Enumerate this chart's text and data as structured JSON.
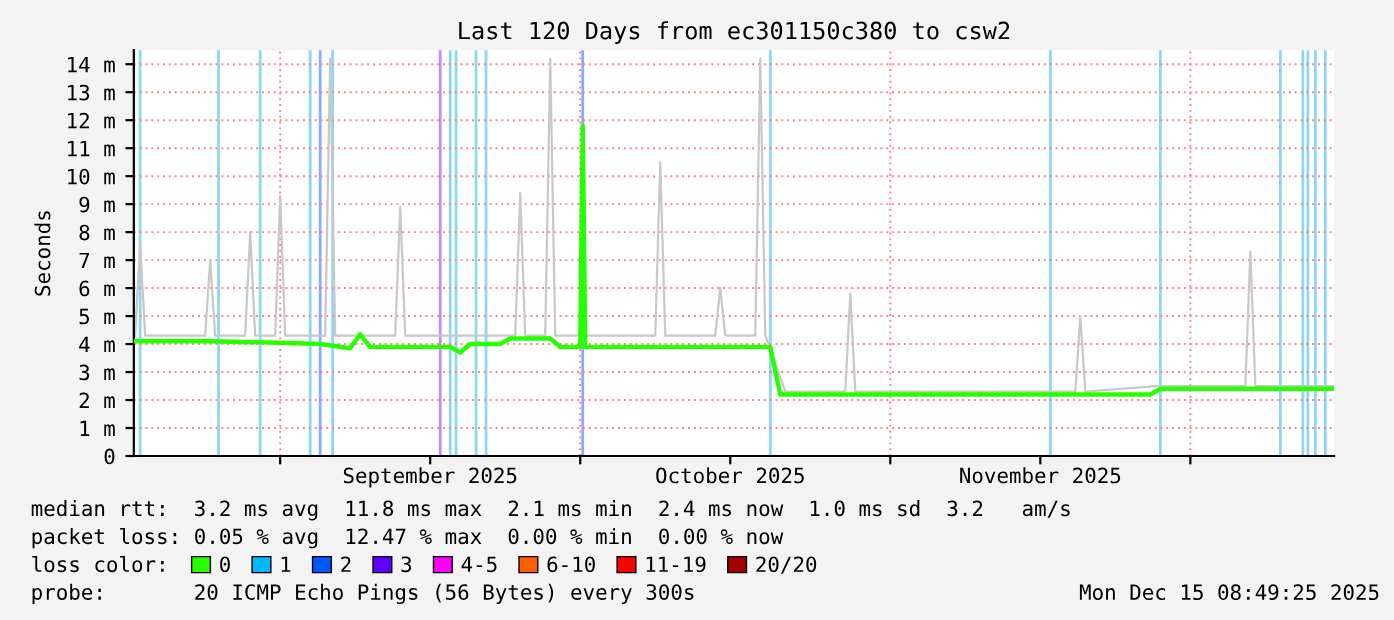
{
  "chart_data": {
    "type": "line",
    "title": "Last 120 Days from ec301150c380 to csw2",
    "ylabel": "Seconds",
    "xlim": [
      "2025-08-17T08:49",
      "2025-12-15T08:49"
    ],
    "xticks": [
      {
        "value": "2025-09-01",
        "label": null
      },
      {
        "value": "2025-09-16",
        "label": "September 2025"
      },
      {
        "value": "2025-10-01",
        "label": null
      },
      {
        "value": "2025-10-16",
        "label": "October 2025"
      },
      {
        "value": "2025-11-01",
        "label": null
      },
      {
        "value": "2025-11-16",
        "label": "November 2025"
      },
      {
        "value": "2025-12-01",
        "label": null
      }
    ],
    "ylim": [
      0,
      14.5
    ],
    "yticks": [
      0,
      {
        "value": 1,
        "label": "1 m"
      },
      {
        "value": 2,
        "label": "2 m"
      },
      {
        "value": 3,
        "label": "3 m"
      },
      {
        "value": 4,
        "label": "4 m"
      },
      {
        "value": 5,
        "label": "5 m"
      },
      {
        "value": 6,
        "label": "6 m"
      },
      {
        "value": 7,
        "label": "7 m"
      },
      {
        "value": 8,
        "label": "8 m"
      },
      {
        "value": 9,
        "label": "9 m"
      },
      {
        "value": 10,
        "label": "10 m"
      },
      {
        "value": 11,
        "label": "11 m"
      },
      {
        "value": 12,
        "label": "12 m"
      },
      {
        "value": 13,
        "label": "13 m"
      },
      {
        "value": 14,
        "label": "14 m"
      }
    ],
    "grid": true,
    "legend": "bottom",
    "legend_title": "loss color:",
    "series": [
      {
        "color": "#c8c8c8",
        "x": [
          "2025-08-17T12:00",
          "2025-08-18",
          "2025-08-18T12:00",
          "2025-08-24T12:00",
          "2025-08-25",
          "2025-08-25T12:00",
          "2025-08-28T12:00",
          "2025-08-29",
          "2025-08-29T12:00",
          "2025-08-31T12:00",
          "2025-09-01",
          "2025-09-01T12:00",
          "2025-09-05T12:00",
          "2025-09-06",
          "2025-09-06T12:00",
          "2025-09-12T12:00",
          "2025-09-13",
          "2025-09-13T12:00",
          "2025-09-24T12:00",
          "2025-09-25",
          "2025-09-25T12:00",
          "2025-09-27T12:00",
          "2025-09-28",
          "2025-09-28T12:00",
          "2025-10-08T12:00",
          "2025-10-09",
          "2025-10-09T12:00",
          "2025-10-14T12:00",
          "2025-10-15",
          "2025-10-15T12:00",
          "2025-10-18T12:00",
          "2025-10-19",
          "2025-10-19T12:00",
          "2025-10-21T12:00",
          "2025-10-27T12:00",
          "2025-10-28",
          "2025-10-28T12:00",
          "2025-11-19T12:00",
          "2025-11-20",
          "2025-11-20T12:00",
          "2025-11-27T12:00",
          "2025-12-06T12:00",
          "2025-12-07",
          "2025-12-07T12:00",
          "2025-12-15T08:00"
        ],
        "values": [
          4.3,
          7.6,
          4.3,
          4.3,
          7.0,
          4.3,
          4.3,
          8.0,
          4.3,
          4.3,
          9.3,
          4.3,
          4.3,
          14.2,
          4.3,
          4.3,
          8.9,
          4.3,
          4.3,
          9.4,
          4.3,
          4.3,
          14.2,
          4.3,
          4.3,
          10.5,
          4.3,
          4.3,
          6.0,
          4.3,
          4.3,
          14.2,
          4.3,
          2.3,
          2.3,
          5.8,
          2.3,
          2.3,
          5.0,
          2.3,
          2.5,
          2.5,
          7.3,
          2.5,
          2.5
        ]
      },
      {
        "name": "0",
        "color": "#26ff00",
        "x": [
          "2025-08-17T09:00",
          "2025-08-25",
          "2025-09-01",
          "2025-09-05",
          "2025-09-08",
          "2025-09-09",
          "2025-09-10",
          "2025-09-18",
          "2025-09-19",
          "2025-09-20",
          "2025-09-23",
          "2025-09-24",
          "2025-09-28",
          "2025-09-29",
          "2025-10-01",
          "2025-10-01T06:00",
          "2025-10-01T12:00",
          "2025-10-20",
          "2025-10-21",
          "2025-11-27",
          "2025-11-28",
          "2025-12-15T08:00"
        ],
        "values": [
          4.1,
          4.1,
          4.05,
          4.0,
          3.85,
          4.35,
          3.9,
          3.9,
          3.7,
          4.0,
          4.0,
          4.2,
          4.2,
          3.9,
          3.9,
          11.8,
          3.9,
          3.9,
          2.2,
          2.2,
          2.4,
          2.4
        ]
      },
      {
        "name": "1",
        "color": "#00b8ff"
      },
      {
        "name": "2",
        "color": "#0059ff"
      },
      {
        "name": "3",
        "color": "#5e00ff"
      },
      {
        "name": "4-5",
        "color": "#ff00ff"
      },
      {
        "name": "6-10",
        "color": "#ff5e00"
      },
      {
        "name": "11-19",
        "color": "#ff0000"
      },
      {
        "name": "20/20",
        "color": "#a10000"
      }
    ],
    "ref_lines": [
      {
        "axis": "x",
        "value": "2025-08-18",
        "color": "#8ad8f4"
      },
      {
        "axis": "x",
        "value": "2025-08-25T20:00",
        "color": "#8ad8f4"
      },
      {
        "axis": "x",
        "value": "2025-08-30",
        "color": "#8ad8f4"
      },
      {
        "axis": "x",
        "value": "2025-09-04",
        "color": "#8ad8f4"
      },
      {
        "axis": "x",
        "value": "2025-09-05",
        "color": "#8aaaff"
      },
      {
        "axis": "x",
        "value": "2025-09-06T06:00",
        "color": "#8ad8f4"
      },
      {
        "axis": "x",
        "value": "2025-09-17",
        "color": "#c08aff"
      },
      {
        "axis": "x",
        "value": "2025-09-18",
        "color": "#8ad8f4"
      },
      {
        "axis": "x",
        "value": "2025-09-18T14:00",
        "color": "#8ad8f4"
      },
      {
        "axis": "x",
        "value": "2025-09-20T14:00",
        "color": "#8ad8f4"
      },
      {
        "axis": "x",
        "value": "2025-09-21T14:00",
        "color": "#8ad8f4"
      },
      {
        "axis": "x",
        "value": "2025-10-01T06:00",
        "color": "#8aaaff"
      },
      {
        "axis": "x",
        "value": "2025-10-20",
        "color": "#8ad8f4"
      },
      {
        "axis": "x",
        "value": "2025-11-17",
        "color": "#8ad8f4"
      },
      {
        "axis": "x",
        "value": "2025-11-28",
        "color": "#8ad8f4"
      },
      {
        "axis": "x",
        "value": "2025-12-10",
        "color": "#8ad8f4"
      },
      {
        "axis": "x",
        "value": "2025-12-12T06:00",
        "color": "#8ad8f4"
      },
      {
        "axis": "x",
        "value": "2025-12-12T18:00",
        "color": "#8ad8f4"
      },
      {
        "axis": "x",
        "value": "2025-12-13T12:00",
        "color": "#8ad8f4"
      },
      {
        "axis": "x",
        "value": "2025-12-14T12:00",
        "color": "#8ad8f4"
      }
    ],
    "annotations": [
      "median rtt:  3.2 ms avg  11.8 ms max  2.1 ms min  2.4 ms now  1.0 ms sd  3.2   am/s",
      "packet loss: 0.05 % avg  12.47 % max  0.00 % min  0.00 % now",
      "probe:       20 ICMP Echo Pings (56 Bytes) every 300s",
      "Mon Dec 15 08:49:25 2025"
    ]
  }
}
